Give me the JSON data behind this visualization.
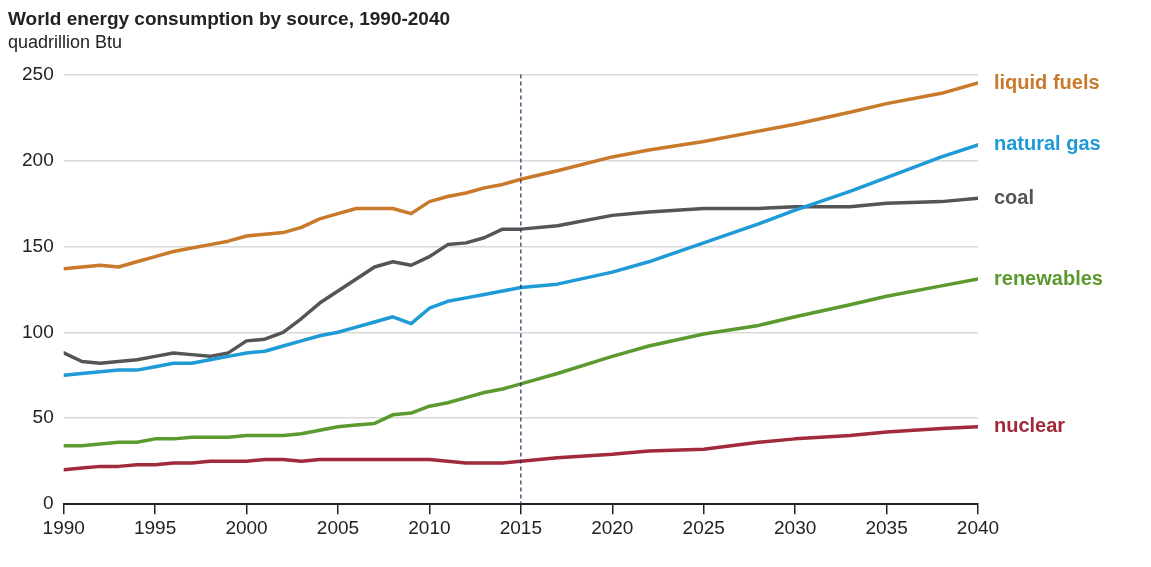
{
  "chart_data": {
    "type": "line",
    "title": "World energy consumption by source, 1990-2040",
    "subtitle": "quadrillion Btu",
    "x": [
      1990,
      1991,
      1992,
      1993,
      1994,
      1995,
      1996,
      1997,
      1998,
      1999,
      2000,
      2001,
      2002,
      2003,
      2004,
      2005,
      2006,
      2007,
      2008,
      2009,
      2010,
      2011,
      2012,
      2013,
      2014,
      2015,
      2017,
      2020,
      2022,
      2025,
      2028,
      2030,
      2033,
      2035,
      2038,
      2040
    ],
    "series": [
      {
        "name": "liquid fuels",
        "color": "#c8792a",
        "values": [
          137,
          138,
          139,
          138,
          141,
          144,
          147,
          149,
          151,
          153,
          156,
          157,
          158,
          161,
          166,
          169,
          172,
          172,
          172,
          169,
          176,
          179,
          181,
          184,
          186,
          189,
          194,
          202,
          206,
          211,
          217,
          221,
          228,
          233,
          239,
          245
        ]
      },
      {
        "name": "natural gas",
        "color": "#1e9ad6",
        "values": [
          75,
          76,
          77,
          78,
          78,
          80,
          82,
          82,
          84,
          86,
          88,
          89,
          92,
          95,
          98,
          100,
          103,
          106,
          109,
          105,
          114,
          118,
          120,
          122,
          124,
          126,
          128,
          135,
          141,
          152,
          163,
          171,
          182,
          190,
          202,
          209
        ]
      },
      {
        "name": "coal",
        "color": "#555555",
        "values": [
          88,
          83,
          82,
          83,
          84,
          86,
          88,
          87,
          86,
          88,
          95,
          96,
          100,
          108,
          117,
          124,
          131,
          138,
          141,
          139,
          144,
          151,
          152,
          155,
          160,
          160,
          162,
          168,
          170,
          172,
          172,
          173,
          173,
          175,
          176,
          178
        ]
      },
      {
        "name": "renewables",
        "color": "#5a9a2e",
        "values": [
          34,
          34,
          35,
          36,
          36,
          38,
          38,
          39,
          39,
          39,
          40,
          40,
          40,
          41,
          43,
          45,
          46,
          47,
          52,
          53,
          57,
          59,
          62,
          65,
          67,
          70,
          76,
          86,
          92,
          99,
          104,
          109,
          116,
          121,
          127,
          131
        ]
      },
      {
        "name": "nuclear",
        "color": "#a12a3c",
        "values": [
          20,
          21,
          22,
          22,
          23,
          23,
          24,
          24,
          25,
          25,
          25,
          26,
          26,
          25,
          26,
          26,
          26,
          26,
          26,
          26,
          26,
          25,
          24,
          24,
          24,
          25,
          27,
          29,
          31,
          32,
          36,
          38,
          40,
          42,
          44,
          45
        ]
      }
    ],
    "xlim": [
      1990,
      2040
    ],
    "xticks": [
      1990,
      1995,
      2000,
      2005,
      2010,
      2015,
      2020,
      2025,
      2030,
      2035,
      2040
    ],
    "ylim": [
      0,
      250
    ],
    "yticks": [
      0,
      50,
      100,
      150,
      200,
      250
    ],
    "grid": "y",
    "legend": false,
    "marker": "none",
    "line_style": "solid",
    "ref_lines": [
      {
        "axis": "x",
        "value": 2015,
        "color": "#1f2f5f",
        "line_style": "dashed"
      }
    ]
  }
}
